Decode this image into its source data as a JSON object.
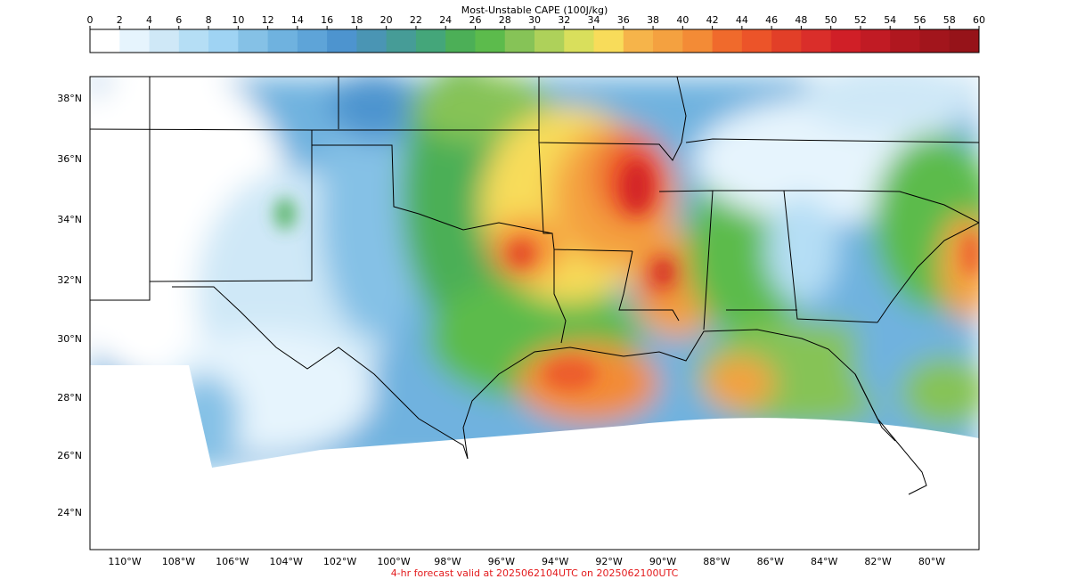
{
  "colorbar": {
    "title": "Most-Unstable CAPE (100J/kg)",
    "ticks": [
      "0",
      "2",
      "4",
      "6",
      "8",
      "10",
      "12",
      "14",
      "16",
      "18",
      "20",
      "22",
      "24",
      "26",
      "28",
      "30",
      "32",
      "34",
      "36",
      "38",
      "40",
      "42",
      "44",
      "46",
      "48",
      "50",
      "52",
      "54",
      "56",
      "58",
      "60"
    ],
    "colors": [
      "#ffffff",
      "#e6f4fd",
      "#cfe8f7",
      "#b5def5",
      "#9fd3f3",
      "#85c1e6",
      "#6fb2df",
      "#5ea4d8",
      "#4d94cf",
      "#4a95b4",
      "#469c97",
      "#44a67a",
      "#4caf57",
      "#5cbb4c",
      "#86c357",
      "#aed15a",
      "#d9df5c",
      "#f8dc5a",
      "#f6b44a",
      "#f4a140",
      "#f38b36",
      "#f06a2c",
      "#ec5429",
      "#e23f28",
      "#da2e2a",
      "#d01f27",
      "#c11b24",
      "#b0171f",
      "#a2151c",
      "#961319"
    ]
  },
  "map": {
    "lat_labels": [
      "38°N",
      "36°N",
      "34°N",
      "32°N",
      "30°N",
      "28°N",
      "26°N",
      "24°N"
    ],
    "lon_labels": [
      "110°W",
      "108°W",
      "106°W",
      "104°W",
      "102°W",
      "100°W",
      "98°W",
      "96°W",
      "94°W",
      "92°W",
      "90°W",
      "88°W",
      "86°W",
      "84°W",
      "82°W",
      "80°W"
    ]
  },
  "footer": "4-hr forecast valid at 2025062104UTC on 2025062100UTC"
}
